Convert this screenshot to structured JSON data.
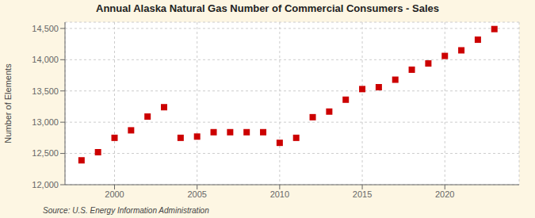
{
  "chart_data": {
    "type": "scatter",
    "title": "Annual Alaska Natural Gas Number of Commercial Consumers - Sales",
    "ylabel": "Number of Elements",
    "source": "Source: U.S. Energy Information Administration",
    "x": [
      1998,
      1999,
      2000,
      2001,
      2002,
      2003,
      2004,
      2005,
      2006,
      2007,
      2008,
      2009,
      2010,
      2011,
      2012,
      2013,
      2014,
      2015,
      2016,
      2017,
      2018,
      2019,
      2020,
      2021,
      2022,
      2023
    ],
    "values": [
      12390,
      12520,
      12750,
      12870,
      13090,
      13240,
      12750,
      12770,
      12840,
      12840,
      12840,
      12840,
      12670,
      12750,
      13080,
      13170,
      13360,
      13530,
      13560,
      13680,
      13840,
      13940,
      14060,
      14150,
      14320,
      14490
    ],
    "color": "#cc0000",
    "marker": "square",
    "xlim": [
      1997,
      2024.5
    ],
    "ylim": [
      12000,
      14600
    ],
    "xticks": [
      2000,
      2005,
      2010,
      2015,
      2020
    ],
    "yticks": [
      {
        "value": 12000,
        "label": "12,000"
      },
      {
        "value": 12500,
        "label": "12,500"
      },
      {
        "value": 13000,
        "label": "13,000"
      },
      {
        "value": 13500,
        "label": "13,500"
      },
      {
        "value": 14000,
        "label": "14,000"
      },
      {
        "value": 14500,
        "label": "14,500"
      }
    ],
    "grid": true
  }
}
